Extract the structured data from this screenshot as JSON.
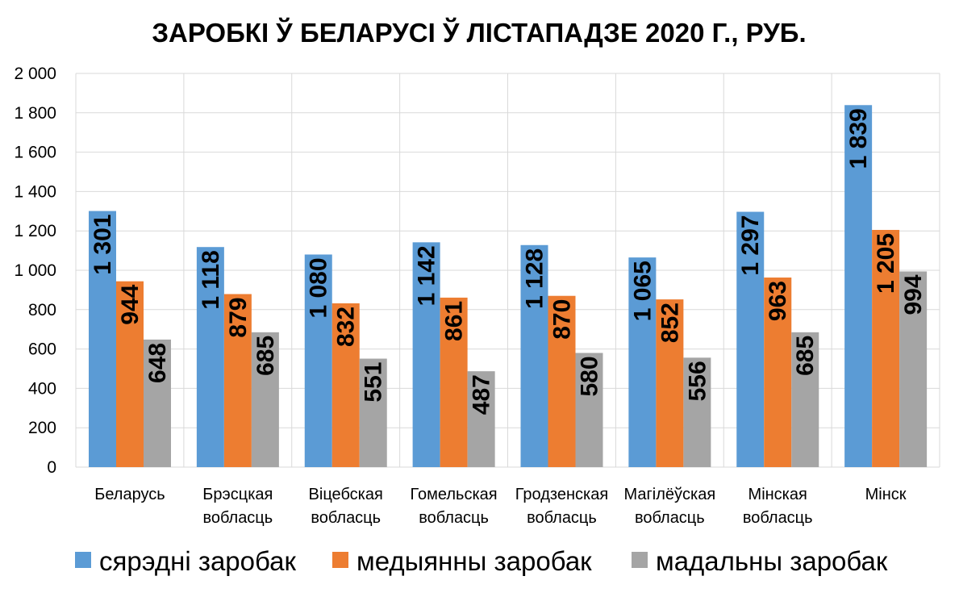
{
  "chart_data": {
    "type": "bar",
    "title": "ЗАРОБКІ Ў БЕЛАРУСІ Ў ЛІСТАПАДЗЕ 2020 Г., РУБ.",
    "categories": [
      [
        "Беларусь"
      ],
      [
        "Брэсцкая",
        "вобласць"
      ],
      [
        "Віцебская",
        "вобласць"
      ],
      [
        "Гомельская",
        "вобласць"
      ],
      [
        "Гродзенская",
        "вобласць"
      ],
      [
        "Магілёўская",
        "вобласць"
      ],
      [
        "Мінская",
        "вобласць"
      ],
      [
        "Мінск"
      ]
    ],
    "series": [
      {
        "name": "сярэдні заробак",
        "color": "#5b9bd5",
        "values": [
          1301,
          1118,
          1080,
          1142,
          1128,
          1065,
          1297,
          1839
        ]
      },
      {
        "name": "медыянны заробак",
        "color": "#ed7d31",
        "values": [
          944,
          879,
          832,
          861,
          870,
          852,
          963,
          1205
        ]
      },
      {
        "name": "мадальны заробак",
        "color": "#a5a5a5",
        "values": [
          648,
          685,
          551,
          487,
          580,
          556,
          685,
          994
        ]
      }
    ],
    "data_labels": [
      [
        "1 301",
        "1 118",
        "1 080",
        "1 142",
        "1 128",
        "1 065",
        "1 297",
        "1 839"
      ],
      [
        "944",
        "879",
        "832",
        "861",
        "870",
        "852",
        "963",
        "1 205"
      ],
      [
        "648",
        "685",
        "551",
        "487",
        "580",
        "556",
        "685",
        "994"
      ]
    ],
    "ylim": [
      0,
      2000
    ],
    "yticks": [
      0,
      200,
      400,
      600,
      800,
      1000,
      1200,
      1400,
      1600,
      1800,
      2000
    ],
    "ytick_labels": [
      "0",
      "200",
      "400",
      "600",
      "800",
      "1 000",
      "1 200",
      "1 400",
      "1 600",
      "1 800",
      "2 000"
    ],
    "xlabel": "",
    "ylabel": "",
    "grid": true,
    "legend_position": "bottom"
  }
}
